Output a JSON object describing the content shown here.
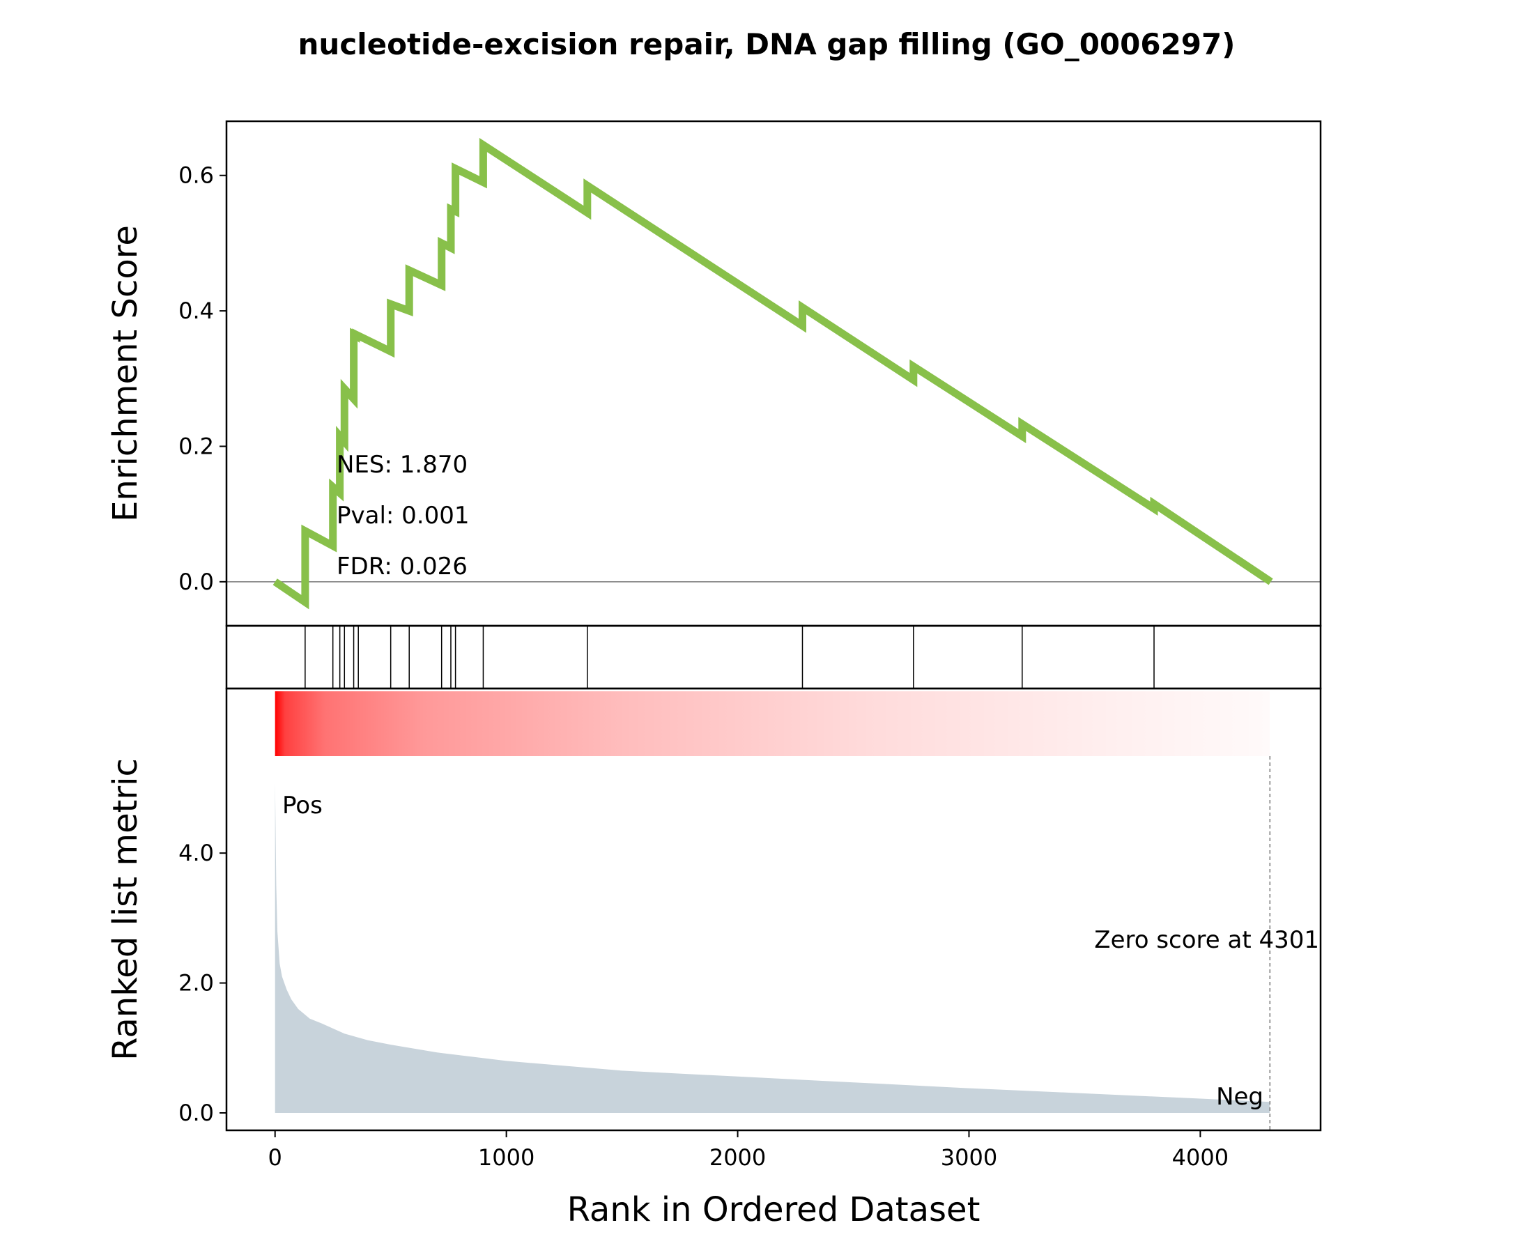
{
  "chart_data": {
    "type": "line",
    "title": "nucleotide-excision repair, DNA gap filling (GO_0006297)",
    "xlabel": "Rank in Ordered Dataset",
    "xlim": [
      -210,
      4520
    ],
    "xticks": [
      0,
      1000,
      2000,
      3000,
      4000
    ],
    "enrichment": {
      "ylabel": "Enrichment Score",
      "ylim": [
        -0.065,
        0.68
      ],
      "yticks": [
        0.0,
        0.2,
        0.4,
        0.6
      ],
      "ytick_labels": [
        "0.0",
        "0.2",
        "0.4",
        "0.6"
      ],
      "color": "#88c04a",
      "x": [
        0,
        130,
        130,
        250,
        250,
        280,
        280,
        300,
        300,
        340,
        340,
        350,
        350,
        500,
        500,
        580,
        580,
        720,
        720,
        760,
        760,
        780,
        780,
        900,
        900,
        1350,
        1350,
        2280,
        2280,
        2760,
        2760,
        3230,
        3230,
        3800,
        3800,
        4305
      ],
      "y": [
        0.0,
        -0.03,
        0.075,
        0.053,
        0.14,
        0.131,
        0.215,
        0.207,
        0.285,
        0.27,
        0.365,
        0.363,
        0.365,
        0.34,
        0.41,
        0.4,
        0.46,
        0.438,
        0.5,
        0.493,
        0.55,
        0.547,
        0.61,
        0.59,
        0.645,
        0.545,
        0.585,
        0.378,
        0.405,
        0.298,
        0.318,
        0.215,
        0.233,
        0.108,
        0.115,
        0.0
      ],
      "stats": {
        "nes": "NES: 1.870",
        "pval": "Pval: 0.001",
        "fdr": "FDR: 0.026"
      }
    },
    "hits": [
      130,
      250,
      280,
      300,
      340,
      360,
      500,
      580,
      720,
      760,
      780,
      900,
      1350,
      2280,
      2760,
      3230,
      3800
    ],
    "ranked": {
      "ylabel": "Ranked list metric",
      "ylim": [
        -0.5,
        10.2
      ],
      "yticks": [
        0.0,
        2.0,
        4.0
      ],
      "ytick_labels": [
        "0.0",
        "2.0",
        "4.0"
      ],
      "fill_color": "#c8d3db",
      "heat_color": "#ff0000",
      "x": [
        0,
        5,
        10,
        20,
        30,
        50,
        70,
        100,
        150,
        200,
        300,
        400,
        500,
        700,
        1000,
        1500,
        2000,
        2500,
        3000,
        3500,
        4000,
        4300
      ],
      "y": [
        5.1,
        3.5,
        2.8,
        2.3,
        2.1,
        1.9,
        1.75,
        1.6,
        1.45,
        1.38,
        1.22,
        1.12,
        1.05,
        0.93,
        0.8,
        0.65,
        0.56,
        0.47,
        0.38,
        0.3,
        0.22,
        0.17
      ],
      "zero_cross": 4301,
      "zero_label": "Zero score at 4301",
      "pos_label": "Pos",
      "neg_label": "Neg",
      "pos_color": "#ff0000",
      "neg_color": "#0000ff"
    }
  }
}
